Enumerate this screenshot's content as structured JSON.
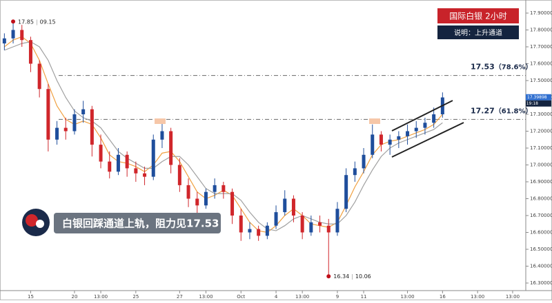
{
  "chart_data": {
    "type": "candlestick",
    "title": "国际白银  2小时",
    "subtitle": "说明：上升通道",
    "annotation": "白银回踩通道上轨，阻力见17.53",
    "up_color": "#1f4e9c",
    "down_color": "#d0262b",
    "categories": [
      null,
      null,
      null,
      "15",
      null,
      null,
      null,
      null,
      "20",
      null,
      null,
      "13:00",
      null,
      null,
      null,
      "25",
      null,
      null,
      null,
      null,
      "27",
      null,
      null,
      "13:00",
      null,
      null,
      null,
      "Oct",
      null,
      null,
      null,
      "4",
      null,
      null,
      "13:00",
      null,
      null,
      null,
      "9",
      null,
      null,
      "11",
      null,
      null,
      null,
      null,
      "13:00",
      null,
      null,
      null,
      "16",
      null,
      null,
      null,
      "13:00",
      null,
      null,
      null,
      "13:00",
      null
    ],
    "open": [
      17.72,
      17.75,
      17.8,
      17.74,
      17.6,
      17.45,
      17.15,
      17.22,
      17.2,
      17.3,
      17.33,
      17.12,
      17.02,
      16.96,
      17.06,
      16.98,
      16.95,
      16.93,
      17.15,
      17.2,
      17.0,
      16.88,
      16.8,
      16.76,
      16.84,
      16.88,
      16.84,
      16.7,
      16.6,
      16.62,
      16.58,
      16.64,
      16.72,
      16.8,
      16.7,
      16.6,
      16.66,
      16.64,
      16.6,
      16.74,
      16.94,
      16.98,
      17.06,
      17.18,
      17.12,
      17.15,
      17.17,
      17.2,
      17.22,
      17.25,
      17.3,
      null,
      null,
      null,
      null,
      null,
      null,
      null,
      null,
      null
    ],
    "high": [
      17.78,
      17.85,
      17.83,
      17.76,
      17.62,
      17.48,
      17.26,
      17.28,
      17.33,
      17.38,
      17.35,
      17.18,
      17.08,
      17.1,
      17.08,
      17.02,
      16.99,
      17.18,
      17.25,
      17.22,
      17.04,
      16.92,
      16.84,
      16.86,
      16.92,
      16.9,
      16.86,
      16.74,
      16.66,
      16.64,
      16.66,
      16.76,
      16.85,
      16.82,
      16.72,
      16.7,
      16.7,
      16.68,
      16.78,
      16.98,
      17.02,
      17.1,
      17.24,
      17.2,
      17.18,
      17.2,
      17.24,
      17.26,
      17.28,
      17.34,
      17.43,
      null,
      null,
      null,
      null,
      null,
      null,
      null,
      null,
      null
    ],
    "low": [
      17.68,
      17.72,
      17.7,
      17.55,
      17.4,
      17.08,
      17.12,
      17.15,
      17.18,
      17.25,
      17.05,
      16.98,
      16.92,
      16.94,
      16.93,
      16.9,
      16.88,
      16.91,
      17.1,
      16.95,
      16.84,
      16.75,
      16.7,
      16.74,
      16.8,
      16.8,
      16.65,
      16.55,
      16.56,
      16.55,
      16.56,
      16.62,
      16.7,
      16.66,
      16.56,
      16.58,
      16.6,
      16.34,
      16.58,
      16.72,
      16.9,
      16.95,
      17.04,
      17.08,
      17.06,
      17.1,
      17.12,
      17.16,
      17.18,
      17.22,
      17.28,
      null,
      null,
      null,
      null,
      null,
      null,
      null,
      null,
      null
    ],
    "close": [
      17.75,
      17.8,
      17.74,
      17.6,
      17.45,
      17.15,
      17.22,
      17.2,
      17.3,
      17.33,
      17.12,
      17.02,
      16.96,
      17.06,
      16.98,
      16.95,
      16.93,
      17.15,
      17.2,
      17.0,
      16.88,
      16.8,
      16.76,
      16.84,
      16.88,
      16.84,
      16.7,
      16.6,
      16.62,
      16.58,
      16.64,
      16.72,
      16.8,
      16.7,
      16.6,
      16.66,
      16.64,
      16.6,
      16.74,
      16.94,
      16.98,
      17.06,
      17.18,
      17.12,
      17.15,
      17.17,
      17.2,
      17.22,
      17.25,
      17.3,
      17.4,
      null,
      null,
      null,
      null,
      null,
      null,
      null,
      null,
      null
    ],
    "series": [
      {
        "color": "#f0a040",
        "values": [
          17.7,
          17.74,
          17.76,
          17.72,
          17.62,
          17.48,
          17.35,
          17.27,
          17.24,
          17.26,
          17.24,
          17.16,
          17.06,
          17.02,
          17.01,
          16.99,
          16.96,
          17.0,
          17.07,
          17.08,
          17.02,
          16.93,
          16.84,
          16.8,
          16.82,
          16.85,
          16.82,
          16.74,
          16.66,
          16.61,
          16.6,
          16.64,
          16.7,
          16.74,
          16.7,
          16.65,
          16.64,
          16.63,
          16.66,
          16.76,
          16.87,
          16.96,
          17.06,
          17.12,
          17.14,
          17.15,
          17.17,
          17.19,
          17.21,
          17.24,
          17.3,
          null,
          null,
          null,
          null,
          null,
          null,
          null,
          null,
          null
        ]
      },
      {
        "color": "#a0a0a0",
        "values": [
          17.68,
          17.7,
          17.72,
          17.73,
          17.7,
          17.62,
          17.5,
          17.4,
          17.32,
          17.28,
          17.26,
          17.22,
          17.15,
          17.08,
          17.04,
          17.01,
          16.98,
          16.98,
          17.02,
          17.05,
          17.05,
          17.0,
          16.93,
          16.86,
          16.83,
          16.83,
          16.83,
          16.79,
          16.72,
          16.66,
          16.62,
          16.61,
          16.64,
          16.68,
          16.7,
          16.68,
          16.66,
          16.65,
          16.65,
          16.7,
          16.78,
          16.88,
          16.97,
          17.05,
          17.1,
          17.13,
          17.15,
          17.17,
          17.19,
          17.21,
          17.25,
          null,
          null,
          null,
          null,
          null,
          null,
          null,
          null,
          null
        ]
      }
    ],
    "ylim": [
      16.3,
      17.9
    ],
    "yticks": [
      {
        "value": 16.3,
        "label": "16.30000"
      },
      {
        "value": 16.4,
        "label": "16.40000"
      },
      {
        "value": 16.5,
        "label": "16.50000"
      },
      {
        "value": 16.6,
        "label": "16.60000"
      },
      {
        "value": 16.7,
        "label": "16.70000"
      },
      {
        "value": 16.8,
        "label": "16.80000"
      },
      {
        "value": 16.9,
        "label": "16.90000"
      },
      {
        "value": 17.0,
        "label": "17.00000"
      },
      {
        "value": 17.1,
        "label": "17.10000"
      },
      {
        "value": 17.2,
        "label": "17.20000"
      },
      {
        "value": 17.3,
        "label": "17.30000"
      },
      {
        "value": 17.4,
        "label": "17.40000"
      },
      {
        "value": 17.5,
        "label": "17.50000"
      },
      {
        "value": 17.6,
        "label": "17.60000"
      },
      {
        "value": 17.7,
        "label": "17.70000"
      },
      {
        "value": 17.8,
        "label": "17.80000"
      },
      {
        "value": 17.9,
        "label": "17.90000"
      }
    ],
    "levels": [
      {
        "value": 17.53,
        "label": "17.53",
        "pct": "（78.6%）"
      },
      {
        "value": 17.27,
        "label": "17.27",
        "pct": "（61.8%）"
      }
    ],
    "extremes": [
      {
        "value": 17.85,
        "label": "17.85",
        "time": "09.15"
      },
      {
        "value": 16.34,
        "label": "16.34",
        "time": "10.06"
      }
    ],
    "last_price": {
      "value": 17.39898,
      "label": "17.39898",
      "time": "19:18"
    }
  }
}
